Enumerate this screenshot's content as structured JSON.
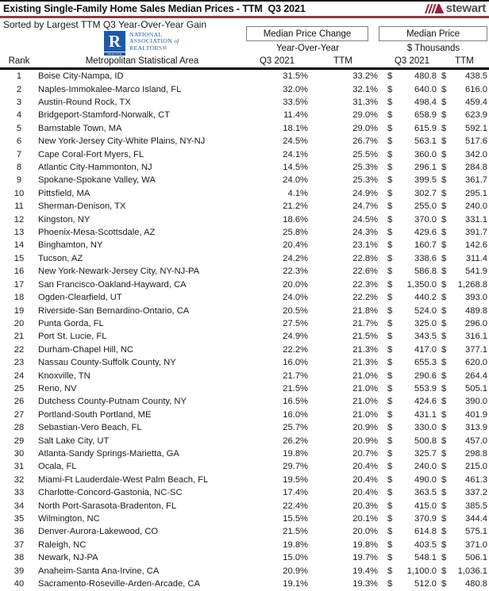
{
  "page": {
    "title": "Existing Single-Family Home Sales Median Prices - TTM  Q3 2021",
    "subtitle": "Sorted by Largest TTM Q3 Year-Over-Year Gain"
  },
  "branding": {
    "stewart_wordmark": "stewart",
    "nar": {
      "square_letter": "R",
      "square_caption": "REALTOR",
      "line1": "NATIONAL",
      "line2": "ASSOCIATION",
      "line2_of": "of",
      "line3": "REALTORS®"
    }
  },
  "colors": {
    "title_underline_red": "#943a42",
    "stewart_maroon": "#9a1c35",
    "stewart_gray": "#4d4d4f",
    "nar_blue": "#1e5aa7",
    "rule_black": "#000000"
  },
  "table": {
    "group1_header": "Median Price Change",
    "group1_subheader": "Year-Over-Year",
    "group2_header": "Median Price",
    "group2_subheader": "$ Thousands",
    "col_rank": "Rank",
    "col_metro": "Metropolitan Statistical Area",
    "col_q3_change": "Q3 2021",
    "col_ttm_change": "TTM",
    "col_q3_price": "Q3 2021",
    "col_ttm_price": "TTM",
    "currency": "$",
    "rows": [
      {
        "rank": 1,
        "metro": "Boise City-Nampa, ID",
        "q3_yoy": "31.5%",
        "ttm_yoy": "33.2%",
        "q3_price": "480.8",
        "ttm_price": "438.5"
      },
      {
        "rank": 2,
        "metro": "Naples-Immokalee-Marco Island, FL",
        "q3_yoy": "32.0%",
        "ttm_yoy": "32.1%",
        "q3_price": "640.0",
        "ttm_price": "616.0"
      },
      {
        "rank": 3,
        "metro": "Austin-Round Rock, TX",
        "q3_yoy": "33.5%",
        "ttm_yoy": "31.3%",
        "q3_price": "498.4",
        "ttm_price": "459.4"
      },
      {
        "rank": 4,
        "metro": "Bridgeport-Stamford-Norwalk, CT",
        "q3_yoy": "11.4%",
        "ttm_yoy": "29.0%",
        "q3_price": "658.9",
        "ttm_price": "623.9"
      },
      {
        "rank": 5,
        "metro": "Barnstable Town, MA",
        "q3_yoy": "18.1%",
        "ttm_yoy": "29.0%",
        "q3_price": "615.9",
        "ttm_price": "592.1"
      },
      {
        "rank": 6,
        "metro": "New York-Jersey City-White Plains, NY-NJ",
        "q3_yoy": "24.5%",
        "ttm_yoy": "26.7%",
        "q3_price": "563.1",
        "ttm_price": "517.6"
      },
      {
        "rank": 7,
        "metro": "Cape Coral-Fort Myers, FL",
        "q3_yoy": "24.1%",
        "ttm_yoy": "25.5%",
        "q3_price": "360.0",
        "ttm_price": "342.0"
      },
      {
        "rank": 8,
        "metro": "Atlantic City-Hammonton, NJ",
        "q3_yoy": "14.5%",
        "ttm_yoy": "25.3%",
        "q3_price": "296.1",
        "ttm_price": "284.8"
      },
      {
        "rank": 9,
        "metro": "Spokane-Spokane Valley, WA",
        "q3_yoy": "24.0%",
        "ttm_yoy": "25.3%",
        "q3_price": "399.5",
        "ttm_price": "361.7"
      },
      {
        "rank": 10,
        "metro": "Pittsfield, MA",
        "q3_yoy": "4.1%",
        "ttm_yoy": "24.9%",
        "q3_price": "302.7",
        "ttm_price": "295.1"
      },
      {
        "rank": 11,
        "metro": "Sherman-Denison, TX",
        "q3_yoy": "21.2%",
        "ttm_yoy": "24.7%",
        "q3_price": "255.0",
        "ttm_price": "240.0"
      },
      {
        "rank": 12,
        "metro": "Kingston, NY",
        "q3_yoy": "18.6%",
        "ttm_yoy": "24.5%",
        "q3_price": "370.0",
        "ttm_price": "331.1"
      },
      {
        "rank": 13,
        "metro": "Phoenix-Mesa-Scottsdale, AZ",
        "q3_yoy": "25.8%",
        "ttm_yoy": "24.3%",
        "q3_price": "429.6",
        "ttm_price": "391.7"
      },
      {
        "rank": 14,
        "metro": "Binghamton, NY",
        "q3_yoy": "20.4%",
        "ttm_yoy": "23.1%",
        "q3_price": "160.7",
        "ttm_price": "142.6"
      },
      {
        "rank": 15,
        "metro": "Tucson, AZ",
        "q3_yoy": "24.2%",
        "ttm_yoy": "22.8%",
        "q3_price": "338.6",
        "ttm_price": "311.4"
      },
      {
        "rank": 16,
        "metro": "New York-Newark-Jersey City, NY-NJ-PA",
        "q3_yoy": "22.3%",
        "ttm_yoy": "22.6%",
        "q3_price": "586.8",
        "ttm_price": "541.9"
      },
      {
        "rank": 17,
        "metro": "San Francisco-Oakland-Hayward, CA",
        "q3_yoy": "20.0%",
        "ttm_yoy": "22.3%",
        "q3_price": "1,350.0",
        "ttm_price": "1,268.8"
      },
      {
        "rank": 18,
        "metro": "Ogden-Clearfield, UT",
        "q3_yoy": "24.0%",
        "ttm_yoy": "22.2%",
        "q3_price": "440.2",
        "ttm_price": "393.0"
      },
      {
        "rank": 19,
        "metro": "Riverside-San Bernardino-Ontario, CA",
        "q3_yoy": "20.5%",
        "ttm_yoy": "21.8%",
        "q3_price": "524.0",
        "ttm_price": "489.8"
      },
      {
        "rank": 20,
        "metro": "Punta Gorda, FL",
        "q3_yoy": "27.5%",
        "ttm_yoy": "21.7%",
        "q3_price": "325.0",
        "ttm_price": "296.0"
      },
      {
        "rank": 21,
        "metro": "Port St. Lucie, FL",
        "q3_yoy": "24.9%",
        "ttm_yoy": "21.5%",
        "q3_price": "343.5",
        "ttm_price": "316.1"
      },
      {
        "rank": 22,
        "metro": "Durham-Chapel Hill, NC",
        "q3_yoy": "22.2%",
        "ttm_yoy": "21.3%",
        "q3_price": "417.0",
        "ttm_price": "377.1"
      },
      {
        "rank": 23,
        "metro": "Nassau County-Suffolk County, NY",
        "q3_yoy": "16.0%",
        "ttm_yoy": "21.3%",
        "q3_price": "655.3",
        "ttm_price": "620.0"
      },
      {
        "rank": 24,
        "metro": "Knoxville, TN",
        "q3_yoy": "21.7%",
        "ttm_yoy": "21.0%",
        "q3_price": "290.6",
        "ttm_price": "264.4"
      },
      {
        "rank": 25,
        "metro": "Reno, NV",
        "q3_yoy": "21.5%",
        "ttm_yoy": "21.0%",
        "q3_price": "553.9",
        "ttm_price": "505.1"
      },
      {
        "rank": 26,
        "metro": "Dutchess County-Putnam County, NY",
        "q3_yoy": "16.5%",
        "ttm_yoy": "21.0%",
        "q3_price": "424.6",
        "ttm_price": "390.0"
      },
      {
        "rank": 27,
        "metro": "Portland-South Portland, ME",
        "q3_yoy": "16.0%",
        "ttm_yoy": "21.0%",
        "q3_price": "431.1",
        "ttm_price": "401.9"
      },
      {
        "rank": 28,
        "metro": "Sebastian-Vero Beach, FL",
        "q3_yoy": "25.7%",
        "ttm_yoy": "20.9%",
        "q3_price": "330.0",
        "ttm_price": "313.9"
      },
      {
        "rank": 29,
        "metro": "Salt Lake City, UT",
        "q3_yoy": "26.2%",
        "ttm_yoy": "20.9%",
        "q3_price": "500.8",
        "ttm_price": "457.0"
      },
      {
        "rank": 30,
        "metro": "Atlanta-Sandy Springs-Marietta, GA",
        "q3_yoy": "19.8%",
        "ttm_yoy": "20.7%",
        "q3_price": "325.7",
        "ttm_price": "298.8"
      },
      {
        "rank": 31,
        "metro": "Ocala, FL",
        "q3_yoy": "29.7%",
        "ttm_yoy": "20.4%",
        "q3_price": "240.0",
        "ttm_price": "215.0"
      },
      {
        "rank": 32,
        "metro": "Miami-Ft Lauderdale-West Palm Beach, FL",
        "q3_yoy": "19.5%",
        "ttm_yoy": "20.4%",
        "q3_price": "490.0",
        "ttm_price": "461.3"
      },
      {
        "rank": 33,
        "metro": "Charlotte-Concord-Gastonia, NC-SC",
        "q3_yoy": "17.4%",
        "ttm_yoy": "20.4%",
        "q3_price": "363.5",
        "ttm_price": "337.2"
      },
      {
        "rank": 34,
        "metro": "North Port-Sarasota-Bradenton, FL",
        "q3_yoy": "22.4%",
        "ttm_yoy": "20.3%",
        "q3_price": "415.0",
        "ttm_price": "385.5"
      },
      {
        "rank": 35,
        "metro": "Wilmington, NC",
        "q3_yoy": "15.5%",
        "ttm_yoy": "20.1%",
        "q3_price": "370.9",
        "ttm_price": "344.4"
      },
      {
        "rank": 36,
        "metro": "Denver-Aurora-Lakewood, CO",
        "q3_yoy": "21.5%",
        "ttm_yoy": "20.0%",
        "q3_price": "614.8",
        "ttm_price": "575.1"
      },
      {
        "rank": 37,
        "metro": "Raleigh, NC",
        "q3_yoy": "19.8%",
        "ttm_yoy": "19.8%",
        "q3_price": "403.5",
        "ttm_price": "371.0"
      },
      {
        "rank": 38,
        "metro": "Newark, NJ-PA",
        "q3_yoy": "15.0%",
        "ttm_yoy": "19.7%",
        "q3_price": "548.1",
        "ttm_price": "506.1"
      },
      {
        "rank": 39,
        "metro": "Anaheim-Santa Ana-Irvine, CA",
        "q3_yoy": "20.9%",
        "ttm_yoy": "19.4%",
        "q3_price": "1,100.0",
        "ttm_price": "1,036.1"
      },
      {
        "rank": 40,
        "metro": "Sacramento-Roseville-Arden-Arcade, CA",
        "q3_yoy": "19.1%",
        "ttm_yoy": "19.3%",
        "q3_price": "512.0",
        "ttm_price": "480.8"
      }
    ]
  }
}
